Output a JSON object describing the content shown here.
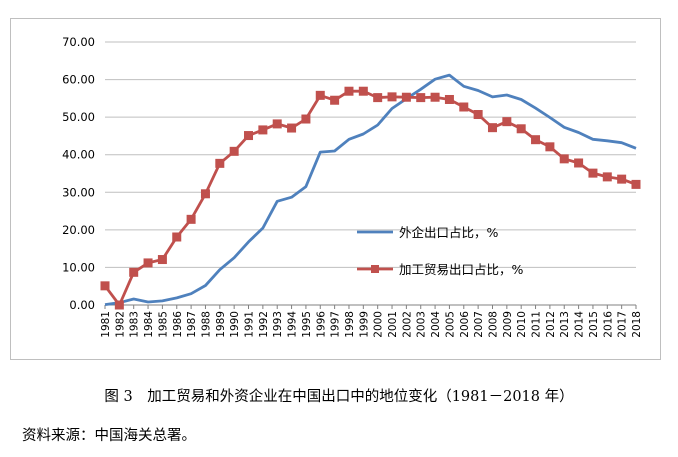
{
  "chart_data": {
    "type": "line",
    "x": [
      "1981",
      "1982",
      "1983",
      "1984",
      "1985",
      "1986",
      "1987",
      "1988",
      "1989",
      "1990",
      "1991",
      "1992",
      "1993",
      "1994",
      "1995",
      "1996",
      "1997",
      "1998",
      "1999",
      "2000",
      "2001",
      "2002",
      "2003",
      "2004",
      "2005",
      "2006",
      "2007",
      "2008",
      "2009",
      "2010",
      "2011",
      "2012",
      "2013",
      "2014",
      "2015",
      "2016",
      "2017",
      "2018"
    ],
    "yticks": [
      "0.00",
      "10.00",
      "20.00",
      "30.00",
      "40.00",
      "50.00",
      "60.00",
      "70.00"
    ],
    "ylim": [
      0,
      70
    ],
    "grid": true,
    "series": [
      {
        "name": "外企出口占比，%",
        "color": "#4f81bd",
        "marker": "none",
        "values": [
          0.1,
          0.6,
          1.6,
          0.8,
          1.1,
          1.9,
          3.0,
          5.2,
          9.4,
          12.6,
          16.8,
          20.5,
          27.6,
          28.7,
          31.5,
          40.7,
          41.0,
          44.1,
          45.5,
          47.9,
          52.3,
          54.9,
          57.4,
          60.1,
          61.2,
          58.2,
          57.1,
          55.4,
          55.9,
          54.7,
          52.4,
          49.9,
          47.3,
          45.9,
          44.1,
          43.7,
          43.2,
          41.7
        ]
      },
      {
        "name": "加工贸易出口占比，%",
        "color": "#c0504d",
        "marker": "square",
        "values": [
          5.1,
          0.0,
          8.7,
          11.2,
          12.1,
          18.1,
          22.8,
          29.6,
          37.7,
          40.9,
          45.1,
          46.6,
          48.2,
          47.1,
          49.5,
          55.8,
          54.5,
          56.9,
          56.9,
          55.2,
          55.4,
          55.3,
          55.2,
          55.3,
          54.7,
          52.7,
          50.7,
          47.2,
          48.8,
          46.9,
          44.0,
          42.1,
          38.9,
          37.8,
          35.1,
          34.1,
          33.5,
          32.1
        ]
      }
    ],
    "legend_placement": "center-right, inside plot"
  },
  "caption": "图 3　加工贸易和外资企业在中国出口中的地位变化（1981－2018 年）",
  "source": "资料来源：中国海关总署。"
}
